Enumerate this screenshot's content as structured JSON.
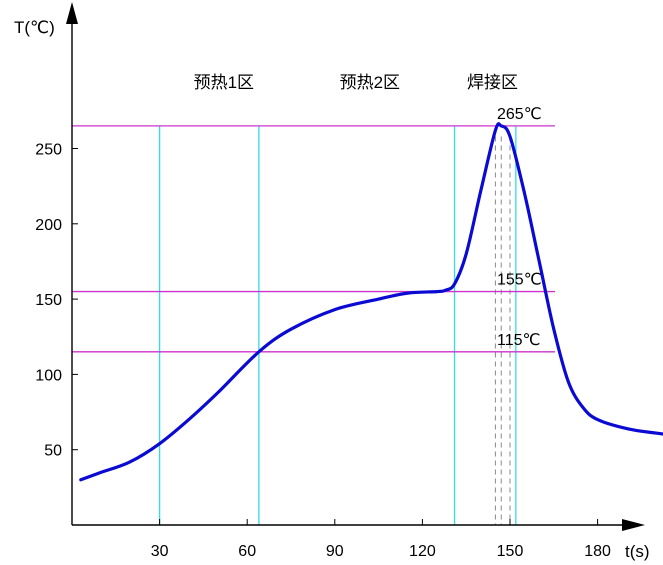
{
  "chart_data": {
    "type": "line",
    "xlabel": "t(s)",
    "ylabel": "T(℃)",
    "xlim": [
      0,
      215
    ],
    "ylim": [
      0,
      280
    ],
    "x_ticks": [
      {
        "value": 30,
        "label": "30"
      },
      {
        "value": 60,
        "label": "60"
      },
      {
        "value": 90,
        "label": "90"
      },
      {
        "value": 120,
        "label": "120"
      },
      {
        "value": 150,
        "label": "150"
      },
      {
        "value": 180,
        "label": "180"
      }
    ],
    "y_ticks": [
      {
        "value": 50,
        "label": "50"
      },
      {
        "value": 100,
        "label": "100"
      },
      {
        "value": 150,
        "label": "150"
      },
      {
        "value": 200,
        "label": "200"
      },
      {
        "value": 250,
        "label": "250"
      }
    ],
    "zones": [
      {
        "label": "预热1区",
        "x": 52
      },
      {
        "label": "预热2区",
        "x": 102
      },
      {
        "label": "焊接区",
        "x": 144
      }
    ],
    "reference_lines": [
      {
        "y": 265,
        "label": "265℃",
        "color": "#cc33cc"
      },
      {
        "y": 155,
        "label": "155℃",
        "color": "#cc33cc"
      },
      {
        "y": 115,
        "label": "115℃",
        "color": "#cc33cc"
      }
    ],
    "cyan_verticals": [
      30,
      64,
      131,
      152
    ],
    "gray_dashed_verticals": [
      145,
      147,
      150
    ],
    "series": [
      {
        "color": "#0a0ad2",
        "points": [
          [
            3,
            30
          ],
          [
            10,
            35
          ],
          [
            20,
            42
          ],
          [
            30,
            54
          ],
          [
            40,
            70
          ],
          [
            50,
            88
          ],
          [
            64,
            115
          ],
          [
            75,
            130
          ],
          [
            90,
            143
          ],
          [
            105,
            150
          ],
          [
            115,
            154
          ],
          [
            125,
            155
          ],
          [
            128,
            156
          ],
          [
            131,
            160
          ],
          [
            135,
            180
          ],
          [
            140,
            222
          ],
          [
            145,
            262
          ],
          [
            147,
            265
          ],
          [
            150,
            258
          ],
          [
            155,
            220
          ],
          [
            160,
            175
          ],
          [
            165,
            130
          ],
          [
            170,
            95
          ],
          [
            175,
            78
          ],
          [
            180,
            70
          ],
          [
            190,
            64
          ],
          [
            200,
            61
          ],
          [
            212,
            58
          ]
        ]
      }
    ]
  }
}
